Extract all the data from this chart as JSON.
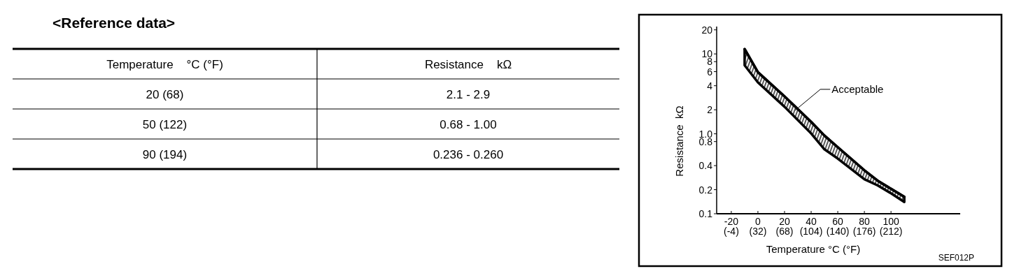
{
  "chart_data": [
    {
      "type": "other",
      "title": "<Reference data>",
      "annotations": [
        "Temperature    °C (°F)",
        "Resistance    kΩ",
        "20 (68)",
        "2.1 - 2.9",
        "50 (122)",
        "0.68 - 1.00",
        "90 (194)",
        "0.236 - 0.260"
      ]
    },
    {
      "type": "line",
      "xlabel": "Temperature °C (°F)",
      "ylabel": "Resistance  kΩ",
      "log": true,
      "x": [
        -10,
        0,
        20,
        40,
        50,
        60,
        80,
        90,
        100,
        110
      ],
      "series": [
        {
          "color": "#000000",
          "values": [
            11.5,
            5.9,
            2.94,
            1.41,
            0.95,
            0.68,
            0.35,
            0.259,
            0.205,
            0.163
          ],
          "lower": [
            7.2,
            4.4,
            2.18,
            1.01,
            0.64,
            0.49,
            0.27,
            0.226,
            0.18,
            0.14
          ],
          "upper": [
            11.5,
            5.9,
            2.94,
            1.41,
            0.95,
            0.68,
            0.35,
            0.259,
            0.205,
            0.163
          ]
        }
      ],
      "xlim": [
        -31,
        152
      ],
      "xticks": [
        -20,
        0,
        20,
        40,
        60,
        80,
        100
      ],
      "x2lim": [
        -23.8,
        305.6
      ],
      "x2ticks": [
        {
          "value": -4,
          "label": "(-4)"
        },
        {
          "value": 32,
          "label": "(32)"
        },
        {
          "value": 68,
          "label": "(68)"
        },
        {
          "value": 104,
          "label": "(104)"
        },
        {
          "value": 140,
          "label": "(140)"
        },
        {
          "value": 176,
          "label": "(176)"
        },
        {
          "value": 212,
          "label": "(212)"
        }
      ],
      "ylim": [
        0.1,
        22
      ],
      "yticks": [
        {
          "value": 0.1,
          "label": "0.1"
        },
        {
          "value": 0.2,
          "label": "0.2"
        },
        {
          "value": 0.4,
          "label": "0.4"
        },
        {
          "value": 0.8,
          "label": "0.8"
        },
        {
          "value": 1,
          "label": "1.0"
        },
        2,
        4,
        6,
        8,
        10,
        20
      ],
      "annotations": [
        {
          "text": "Acceptable",
          "x": 28,
          "y": 1.97
        },
        "SEF012P"
      ]
    }
  ]
}
